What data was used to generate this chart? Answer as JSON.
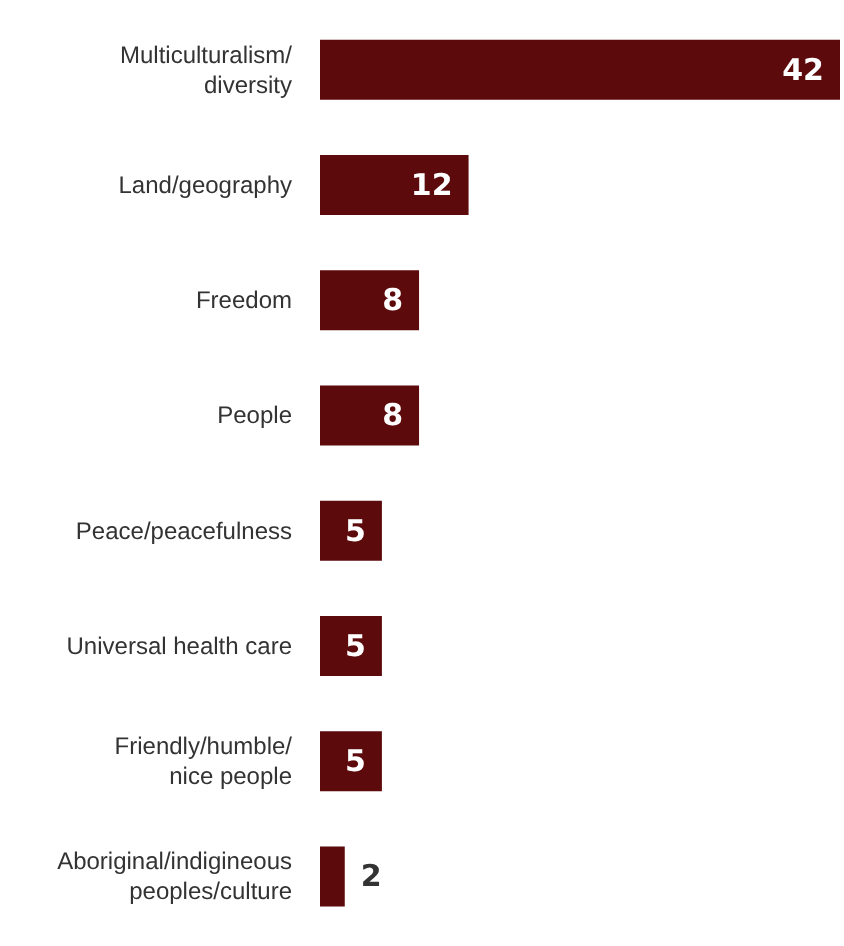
{
  "chart_data": {
    "type": "bar",
    "orientation": "horizontal",
    "categories": [
      "Multiculturalism/\ndiversity",
      "Land/geography",
      "Freedom",
      "People",
      "Peace/peacefulness",
      "Universal health care",
      "Friendly/humble/\nnice people",
      "Aboriginal/indigineous\npeoples/culture"
    ],
    "values": [
      42,
      12,
      8,
      8,
      5,
      5,
      5,
      2
    ],
    "color": "#5c0a0c",
    "data_labels": true
  }
}
